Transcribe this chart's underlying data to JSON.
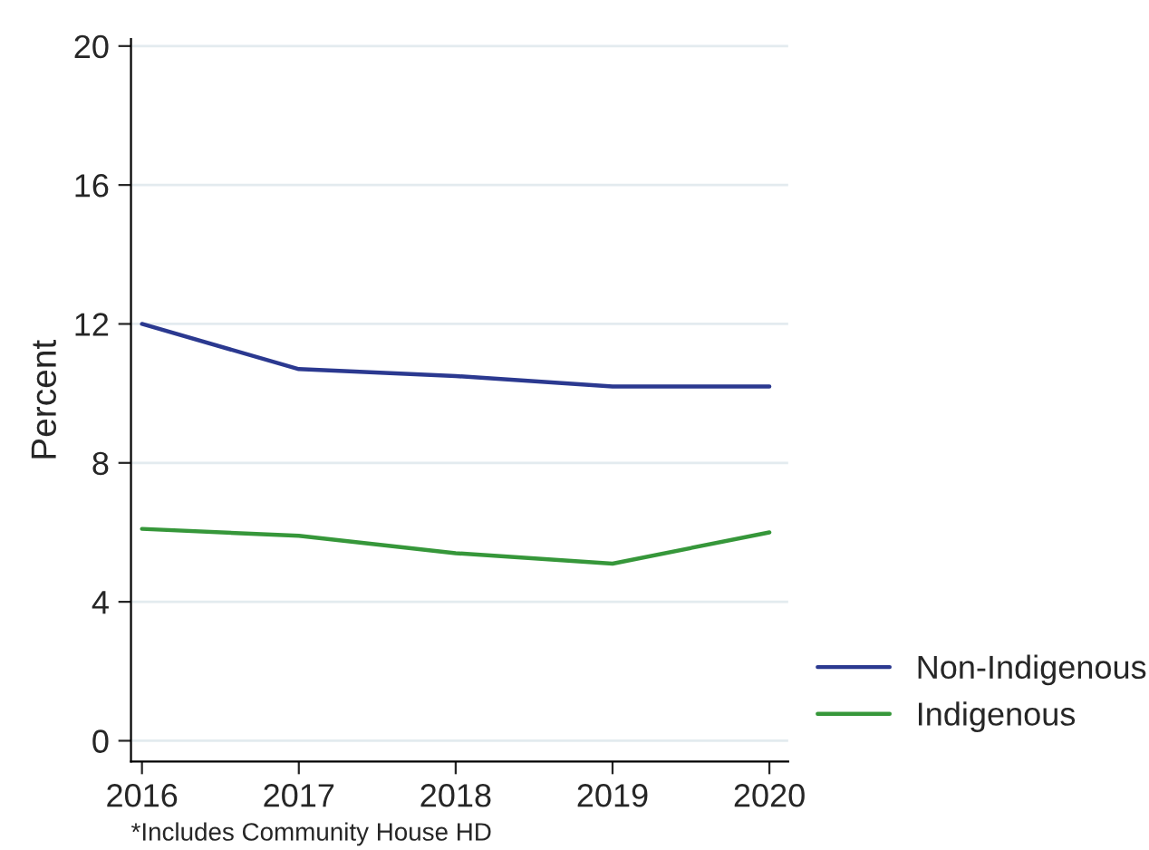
{
  "chart_data": {
    "type": "line",
    "ylabel": "Percent",
    "x": [
      2016,
      2017,
      2018,
      2019,
      2020
    ],
    "series": [
      {
        "name": "Non-Indigenous",
        "color": "#2b3990",
        "values": [
          12.0,
          10.7,
          10.5,
          10.2,
          10.2
        ]
      },
      {
        "name": "Indigenous",
        "color": "#36973a",
        "values": [
          6.1,
          5.9,
          5.4,
          5.1,
          6.0
        ]
      }
    ],
    "xlim": [
      2015.93,
      2020.12
    ],
    "xticks": [
      2016,
      2017,
      2018,
      2019,
      2020
    ],
    "ylim": [
      -0.6,
      20.2
    ],
    "yticks": [
      0,
      4,
      8,
      12,
      16,
      20
    ],
    "grid": "y",
    "legend": "bottom right",
    "marker": "none",
    "line_style": "solid",
    "annotations": [
      "*Includes Community House HD"
    ]
  }
}
